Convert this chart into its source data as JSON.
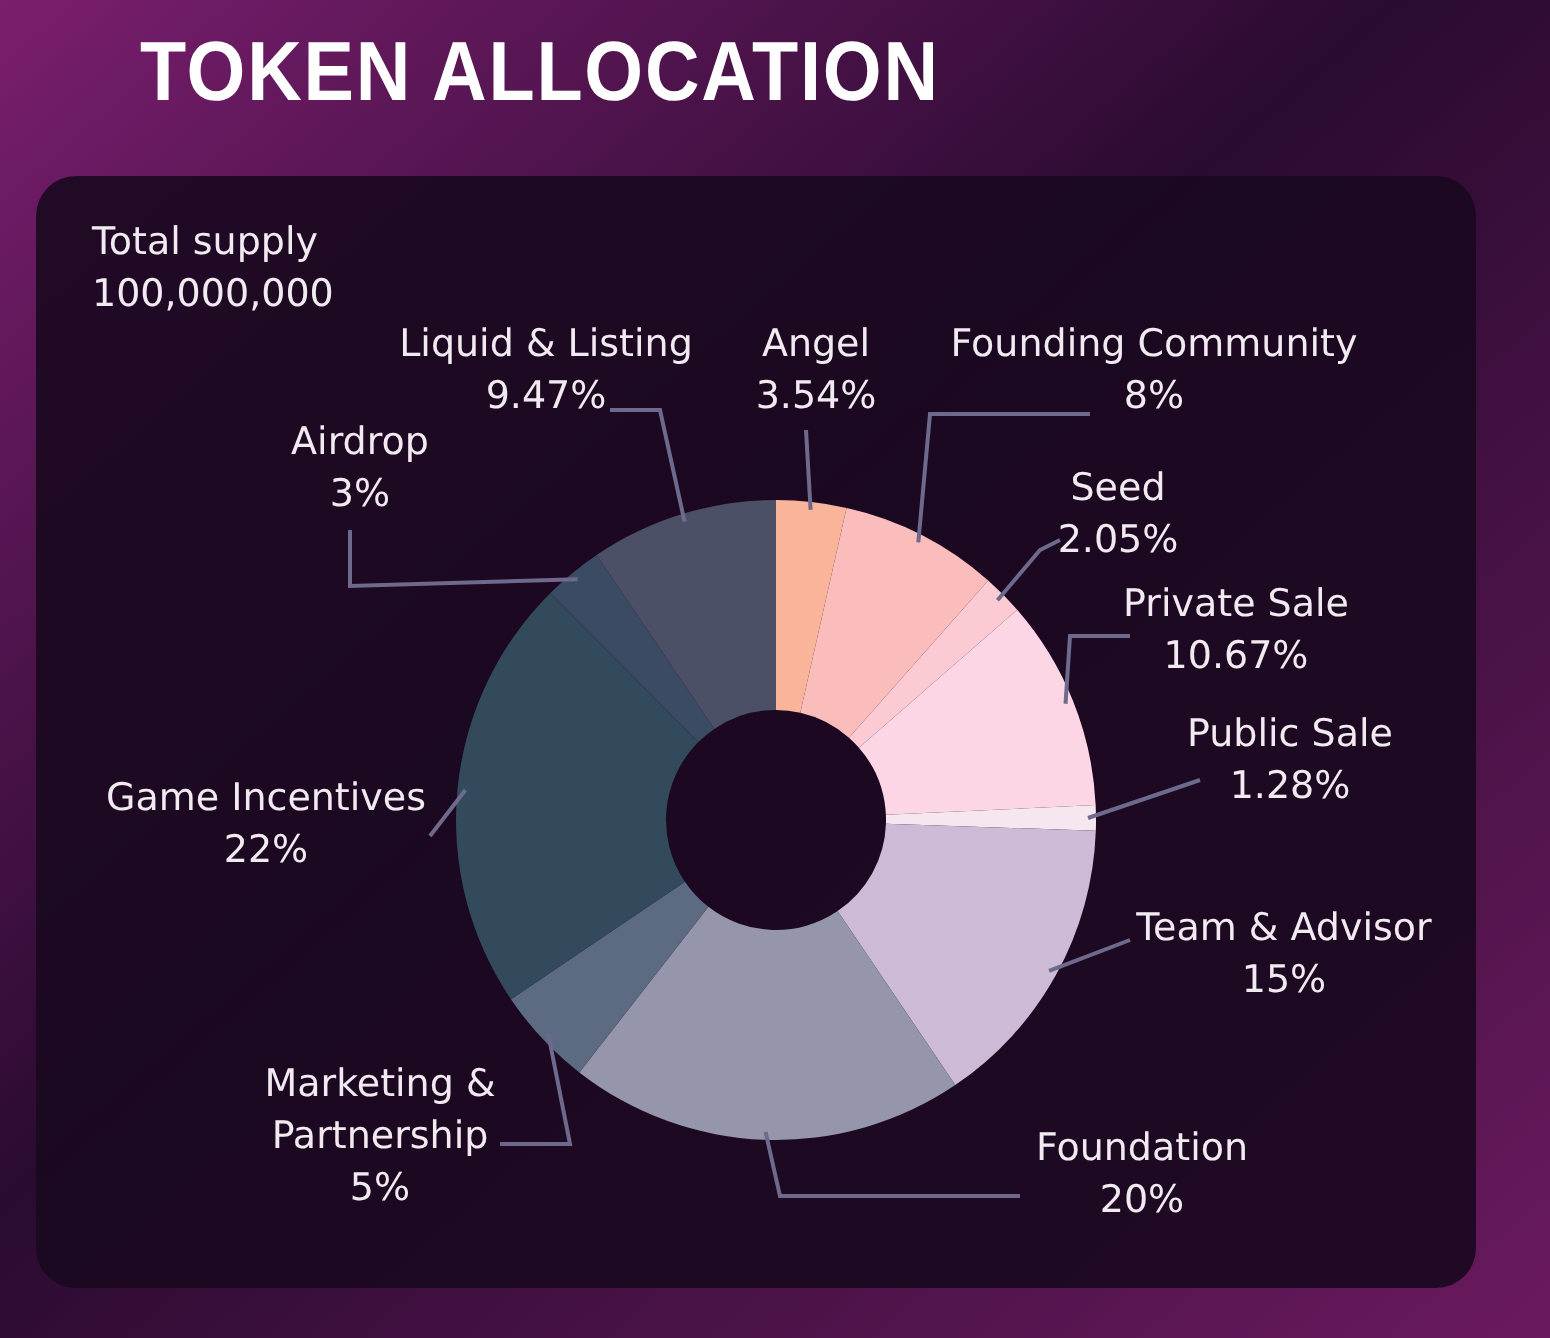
{
  "chart_data": {
    "type": "donut",
    "title": "TOKEN ALLOCATION",
    "annotations": [
      "Total supply",
      "100,000,000"
    ],
    "categories": [
      "Angel",
      "Founding Community",
      "Seed",
      "Private Sale",
      "Public Sale",
      "Team & Advisor",
      "Foundation",
      "Marketing & Partnership",
      "Game Incentives",
      "Airdrop",
      "Liquid & Listing"
    ],
    "values": [
      3.54,
      8,
      2.05,
      10.67,
      1.28,
      15,
      20,
      5,
      22,
      3,
      9.47
    ],
    "colors": [
      "#f9b49a",
      "#fbbcbc",
      "#fccad2",
      "#fdd6e6",
      "#f6e6f0",
      "#cdbad6",
      "#9596ab",
      "#5c6a82",
      "#324a5c",
      "#3b4b63",
      "#4c5067"
    ],
    "value_labels": [
      "3.54%",
      "8%",
      "2.05%",
      "10.67%",
      "1.28%",
      "15%",
      "20%",
      "5%",
      "22%",
      "3%",
      "9.47%"
    ]
  }
}
